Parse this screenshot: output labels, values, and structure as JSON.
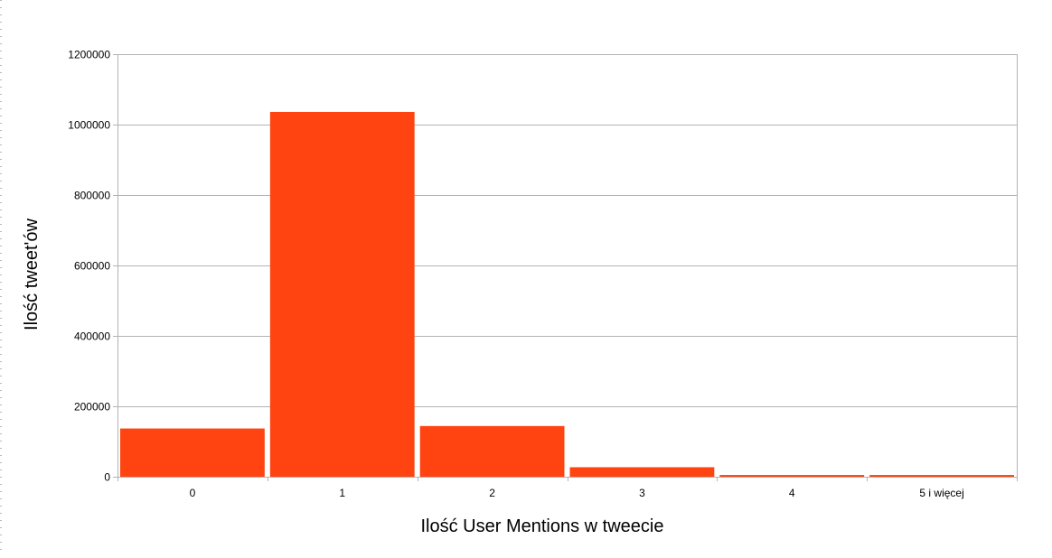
{
  "chart_data": {
    "type": "bar",
    "categories": [
      "0",
      "1",
      "2",
      "3",
      "4",
      "5 i więcej"
    ],
    "values": [
      137000,
      1036000,
      144000,
      27000,
      5000,
      5000
    ],
    "xlabel": "Ilość User Mentions w tweecie",
    "ylabel": "Ilość tweet'ów",
    "ylim": [
      0,
      1200000
    ],
    "yticks": [
      "0",
      "200000",
      "400000",
      "600000",
      "800000",
      "1000000",
      "1200000"
    ],
    "grid": true,
    "legend": "none",
    "colors": {
      "bar": "#ff4411",
      "grid": "#b3b3b3",
      "axis": "#b3b3b3"
    }
  }
}
